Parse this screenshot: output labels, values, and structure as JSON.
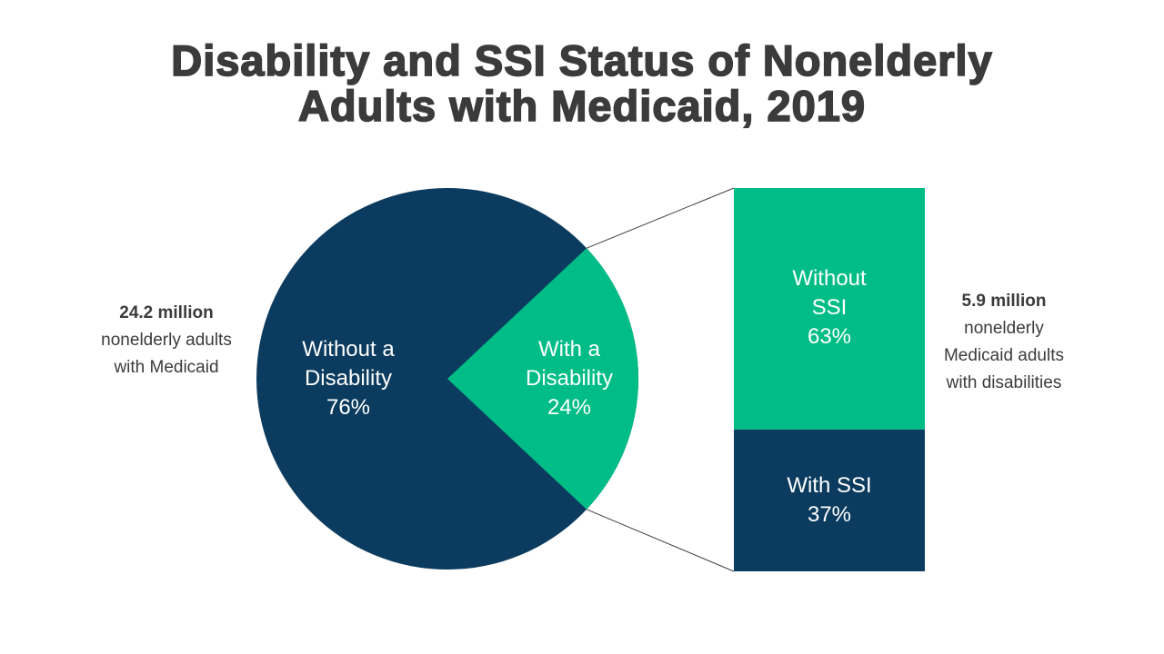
{
  "title": "Disability and SSI Status of Nonelderly\nAdults with Medicaid, 2019",
  "pie_labels": {
    "without_disability": "Without a\nDisability\n76%",
    "with_disability": "With a\nDisability\n24%"
  },
  "bar_labels": {
    "without_ssi": "Without\nSSI\n63%",
    "with_ssi": "With SSI\n37%"
  },
  "annotations": {
    "left_value": "24.2 million",
    "left_rest": "nonelderly adults\nwith Medicaid",
    "right_value": "5.9 million",
    "right_rest": "nonelderly\nMedicaid adults\nwith disabilities"
  },
  "colors": {
    "navy": "#0b3b5e",
    "green": "#00bc86",
    "text": "#3b3b3b",
    "connector": "#404040",
    "background": "#ffffff"
  },
  "chart_data": [
    {
      "type": "pie",
      "title": "Disability and SSI Status of Nonelderly Adults with Medicaid, 2019",
      "categories": [
        "Without a Disability",
        "With a Disability"
      ],
      "values": [
        76,
        24
      ],
      "unit": "percent",
      "colors": [
        "#0b3b5e",
        "#00bc86"
      ],
      "labels_inside": true,
      "legend": "none",
      "annotation": "24.2 million nonelderly adults with Medicaid"
    },
    {
      "type": "bar",
      "subtype": "100%-stacked-single-column",
      "categories": [
        "Without SSI",
        "With SSI"
      ],
      "values": [
        63,
        37
      ],
      "unit": "percent",
      "colors": [
        "#00bc86",
        "#0b3b5e"
      ],
      "labels_inside": true,
      "legend": "none",
      "annotation": "5.9 million nonelderly Medicaid adults with disabilities",
      "note": "breakout of the 'With a Disability' pie slice, linked by connector lines"
    }
  ]
}
